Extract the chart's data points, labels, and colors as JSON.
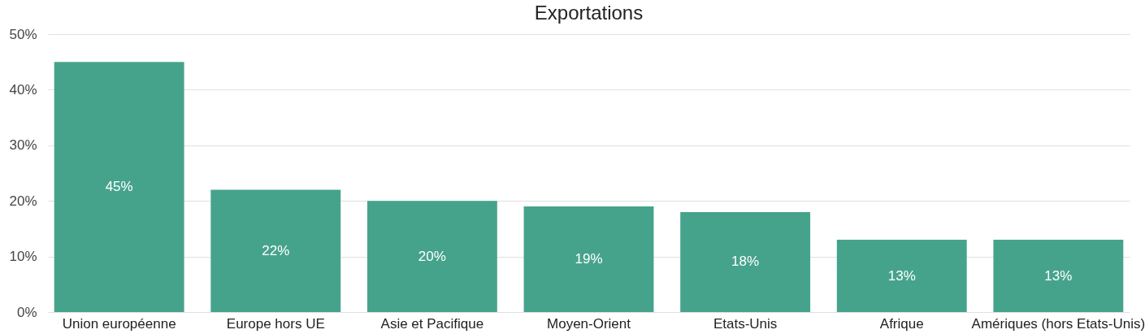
{
  "chart_data": {
    "type": "bar",
    "title": "Exportations",
    "categories": [
      "Union européenne",
      "Europe hors UE",
      "Asie et Pacifique",
      "Moyen-Orient",
      "Etats-Unis",
      "Afrique",
      "Amériques (hors Etats-Unis)"
    ],
    "values": [
      45,
      22,
      20,
      19,
      18,
      13,
      13
    ],
    "color": "#46a38b",
    "value_labels": [
      "45%",
      "22%",
      "20%",
      "19%",
      "18%",
      "13%",
      "13%"
    ],
    "ylim": [
      0,
      50
    ],
    "yticks": [
      {
        "value": 0,
        "label": "0%"
      },
      {
        "value": 10,
        "label": "10%"
      },
      {
        "value": 20,
        "label": "20%"
      },
      {
        "value": 30,
        "label": "30%"
      },
      {
        "value": 40,
        "label": "40%"
      },
      {
        "value": 50,
        "label": "50%"
      }
    ],
    "grid": "y"
  }
}
